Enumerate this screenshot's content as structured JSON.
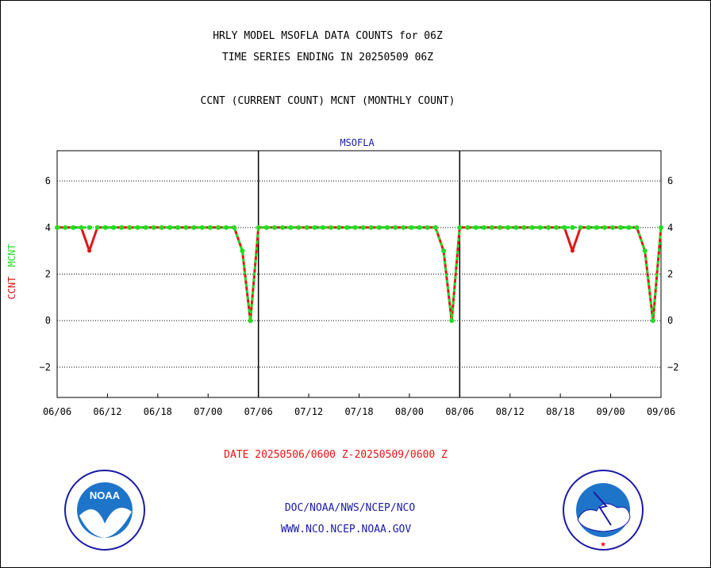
{
  "header": {
    "title_line1": "HRLY MODEL MSOFLA DATA COUNTS for 06Z",
    "title_line2": "TIME SERIES ENDING IN 20250509 06Z",
    "subtitle": "CCNT (CURRENT COUNT) MCNT (MONTHLY COUNT)"
  },
  "footer": {
    "date_range": "DATE 20250506/0600 Z-20250509/0600 Z",
    "credit_line1": "DOC/NOAA/NWS/NCEP/NCO",
    "credit_line2": "WWW.NCO.NCEP.NOAA.GOV"
  },
  "logos": {
    "left": "NOAA",
    "right": "NATIONAL WEATHER SERVICE"
  },
  "colors": {
    "ccnt": "#e11515",
    "mcnt": "#22dd22",
    "text_blue": "#1a1aa8"
  },
  "chart_data": {
    "type": "line",
    "title": "MSOFLA",
    "ylabel_left": [
      "CCNT",
      "MCNT"
    ],
    "ylim": [
      -3.3,
      7.3
    ],
    "yticks": [
      -2,
      0,
      2,
      4,
      6
    ],
    "ytick_labels": [
      "−2",
      "0",
      "2",
      "4",
      "6"
    ],
    "x_tick_labels": [
      "06/06",
      "06/12",
      "06/18",
      "07/00",
      "07/06",
      "07/12",
      "07/18",
      "08/00",
      "08/06",
      "08/12",
      "08/18",
      "09/00",
      "09/06"
    ],
    "panel_dividers": [
      "07/06",
      "08/06"
    ],
    "grid": true,
    "series": [
      {
        "name": "CCNT",
        "color": "#e11515",
        "values": [
          4,
          4,
          4,
          4,
          3,
          4,
          4,
          4,
          4,
          4,
          4,
          4,
          4,
          4,
          4,
          4,
          4,
          4,
          4,
          4,
          4,
          4,
          4,
          3,
          0,
          4,
          4,
          4,
          4,
          4,
          4,
          4,
          4,
          4,
          4,
          4,
          4,
          4,
          4,
          4,
          4,
          4,
          4,
          4,
          4,
          4,
          4,
          4,
          3,
          0,
          4,
          4,
          4,
          4,
          4,
          4,
          4,
          4,
          4,
          4,
          4,
          4,
          4,
          4,
          3,
          4,
          4,
          4,
          4,
          4,
          4,
          4,
          4,
          3,
          0,
          4
        ]
      },
      {
        "name": "MCNT",
        "color": "#22dd22",
        "values": [
          4,
          4,
          4,
          4,
          4,
          4,
          4,
          4,
          4,
          4,
          4,
          4,
          4,
          4,
          4,
          4,
          4,
          4,
          4,
          4,
          4,
          4,
          4,
          3,
          0,
          4,
          4,
          4,
          4,
          4,
          4,
          4,
          4,
          4,
          4,
          4,
          4,
          4,
          4,
          4,
          4,
          4,
          4,
          4,
          4,
          4,
          4,
          4,
          3,
          0,
          4,
          4,
          4,
          4,
          4,
          4,
          4,
          4,
          4,
          4,
          4,
          4,
          4,
          4,
          4,
          4,
          4,
          4,
          4,
          4,
          4,
          4,
          4,
          3,
          0,
          4
        ]
      }
    ]
  }
}
